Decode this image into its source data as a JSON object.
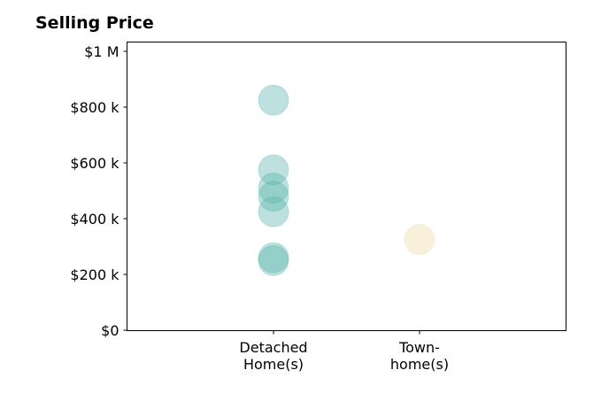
{
  "chart_data": {
    "type": "scatter",
    "title": "Selling Price",
    "xlabel": "",
    "ylabel": "",
    "categories": [
      {
        "lines": [
          "Detached",
          "Home(s)"
        ]
      },
      {
        "lines": [
          "Town-",
          "home(s)"
        ]
      }
    ],
    "ylim": [
      0,
      1000000
    ],
    "yticks": [
      {
        "value": 0,
        "label": "$0"
      },
      {
        "value": 200000,
        "label": "$200 k"
      },
      {
        "value": 400000,
        "label": "$400 k"
      },
      {
        "value": 600000,
        "label": "$600 k"
      },
      {
        "value": 800000,
        "label": "$800 k"
      },
      {
        "value": 1000000,
        "label": "$1 M"
      }
    ],
    "grid": false,
    "series": [
      {
        "category_index": 0,
        "color": "#5ab4ac",
        "values": [
          825000,
          575000,
          510000,
          480000,
          425000,
          260000,
          250000
        ]
      },
      {
        "category_index": 1,
        "color": "#f0d9a8",
        "values": [
          325000
        ]
      }
    ]
  }
}
